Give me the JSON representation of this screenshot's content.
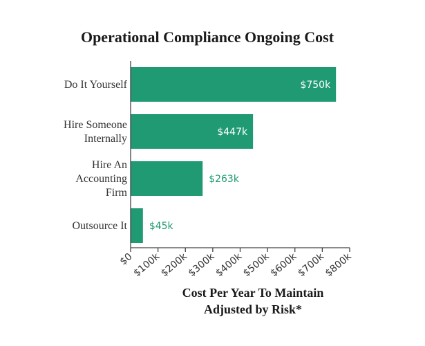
{
  "chart_data": {
    "type": "bar",
    "orientation": "horizontal",
    "title": "Operational Compliance Ongoing Cost",
    "xlabel_lines": [
      "Cost Per Year To Maintain",
      "Adjusted by Risk*"
    ],
    "ylabel": "",
    "categories": [
      [
        "Do It Yourself"
      ],
      [
        "Hire Someone",
        "Internally"
      ],
      [
        "Hire An",
        "Accounting",
        "Firm"
      ],
      [
        "Outsource It"
      ]
    ],
    "values": [
      750,
      447,
      263,
      45
    ],
    "data_labels": [
      "$750k",
      "$447k",
      "$263k",
      "$45k"
    ],
    "x_ticks": [
      0,
      100,
      200,
      300,
      400,
      500,
      600,
      700,
      800
    ],
    "x_tick_labels": [
      "$0",
      "$100k",
      "$200k",
      "$300k",
      "$400k",
      "$500k",
      "$600k",
      "$700k",
      "$800k"
    ],
    "xlim": [
      0,
      800
    ],
    "unit": "thousands USD",
    "grid": false,
    "bar_color": "#1f9a72"
  }
}
